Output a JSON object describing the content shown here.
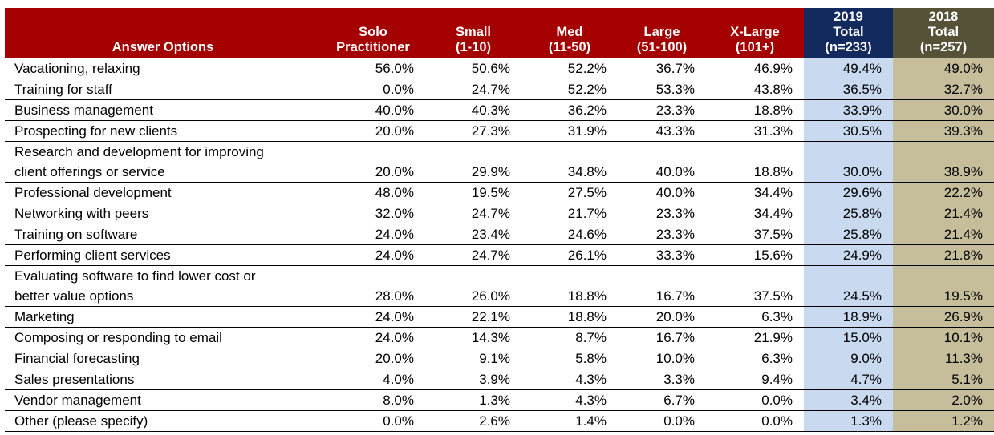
{
  "colors": {
    "header_red": "#A40000",
    "header_navy": "#122A5E",
    "header_olive": "#555237",
    "header_text": "#FFFFFF",
    "col_2019_bg": "#C9DAF0",
    "col_2018_bg": "#C6BE9B",
    "body_text": "#000000",
    "row_border": "#000000"
  },
  "chart_data": {
    "type": "table",
    "title": "",
    "header": {
      "answer_col": "Answer Options",
      "group_cols": [
        {
          "lines": [
            "Solo",
            "Practitioner"
          ],
          "group": "red"
        },
        {
          "lines": [
            "Small",
            "(1-10)"
          ],
          "group": "red"
        },
        {
          "lines": [
            "Med",
            "(11-50)"
          ],
          "group": "red"
        },
        {
          "lines": [
            "Large",
            "(51-100)"
          ],
          "group": "red"
        },
        {
          "lines": [
            "X-Large",
            "(101+)"
          ],
          "group": "red"
        },
        {
          "lines": [
            "2019",
            "Total",
            "(n=233)"
          ],
          "group": "navy"
        },
        {
          "lines": [
            "2018",
            "Total",
            "(n=257)"
          ],
          "group": "olive"
        }
      ]
    },
    "rows": [
      {
        "label": "Vacationing, relaxing",
        "values": [
          "56.0%",
          "50.6%",
          "52.2%",
          "36.7%",
          "46.9%",
          "49.4%",
          "49.0%"
        ]
      },
      {
        "label": "Training for staff",
        "values": [
          "0.0%",
          "24.7%",
          "52.2%",
          "53.3%",
          "43.8%",
          "36.5%",
          "32.7%"
        ]
      },
      {
        "label": "Business management",
        "values": [
          "40.0%",
          "40.3%",
          "36.2%",
          "23.3%",
          "18.8%",
          "33.9%",
          "30.0%"
        ]
      },
      {
        "label": "Prospecting for new clients",
        "values": [
          "20.0%",
          "27.3%",
          "31.9%",
          "43.3%",
          "31.3%",
          "30.5%",
          "39.3%"
        ]
      },
      {
        "label": "Research and development for improving\nclient offerings or service",
        "values": [
          "20.0%",
          "29.9%",
          "34.8%",
          "40.0%",
          "18.8%",
          "30.0%",
          "38.9%"
        ]
      },
      {
        "label": "Professional development",
        "values": [
          "48.0%",
          "19.5%",
          "27.5%",
          "40.0%",
          "34.4%",
          "29.6%",
          "22.2%"
        ]
      },
      {
        "label": "Networking with peers",
        "values": [
          "32.0%",
          "24.7%",
          "21.7%",
          "23.3%",
          "34.4%",
          "25.8%",
          "21.4%"
        ]
      },
      {
        "label": "Training on software",
        "values": [
          "24.0%",
          "23.4%",
          "24.6%",
          "23.3%",
          "37.5%",
          "25.8%",
          "21.4%"
        ]
      },
      {
        "label": "Performing client services",
        "values": [
          "24.0%",
          "24.7%",
          "26.1%",
          "33.3%",
          "15.6%",
          "24.9%",
          "21.8%"
        ]
      },
      {
        "label": "Evaluating software to find lower cost or\nbetter value options",
        "values": [
          "28.0%",
          "26.0%",
          "18.8%",
          "16.7%",
          "37.5%",
          "24.5%",
          "19.5%"
        ]
      },
      {
        "label": "Marketing",
        "values": [
          "24.0%",
          "22.1%",
          "18.8%",
          "20.0%",
          "6.3%",
          "18.9%",
          "26.9%"
        ]
      },
      {
        "label": "Composing or responding to email",
        "values": [
          "24.0%",
          "14.3%",
          "8.7%",
          "16.7%",
          "21.9%",
          "15.0%",
          "10.1%"
        ]
      },
      {
        "label": "Financial forecasting",
        "values": [
          "20.0%",
          "9.1%",
          "5.8%",
          "10.0%",
          "6.3%",
          "9.0%",
          "11.3%"
        ]
      },
      {
        "label": "Sales presentations",
        "values": [
          "4.0%",
          "3.9%",
          "4.3%",
          "3.3%",
          "9.4%",
          "4.7%",
          "5.1%"
        ]
      },
      {
        "label": "Vendor management",
        "values": [
          "8.0%",
          "1.3%",
          "4.3%",
          "6.7%",
          "0.0%",
          "3.4%",
          "2.0%"
        ]
      },
      {
        "label": "Other (please specify)",
        "values": [
          "0.0%",
          "2.6%",
          "1.4%",
          "0.0%",
          "0.0%",
          "1.3%",
          "1.2%"
        ]
      }
    ]
  }
}
